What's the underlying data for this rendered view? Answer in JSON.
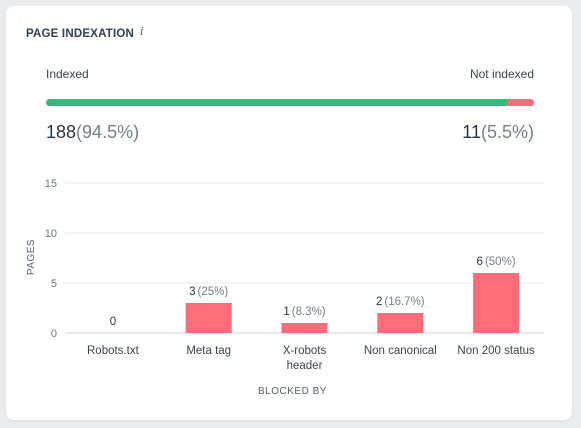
{
  "widget": {
    "title": "PAGE INDEXATION",
    "info_icon": "info-icon"
  },
  "indexation": {
    "indexed_label": "Indexed",
    "not_indexed_label": "Not indexed",
    "indexed_count": "188",
    "indexed_pct": "(94.5%)",
    "not_indexed_count": "11",
    "not_indexed_pct": "(5.5%)",
    "indexed_fraction": 0.945,
    "colors": {
      "indexed": "#3cb77b",
      "not_indexed": "#ff6d7a"
    }
  },
  "chart_data": {
    "type": "bar",
    "categories": [
      "Robots.txt",
      "Meta tag",
      "X-robots header",
      "Non canonical",
      "Non 200 status"
    ],
    "values": [
      0,
      3,
      1,
      2,
      6
    ],
    "value_labels": [
      "0",
      "3",
      "1",
      "2",
      "6"
    ],
    "pct_labels": [
      "",
      "(25%)",
      "(8.3%)",
      "(16.7%)",
      "(50%)"
    ],
    "ylabel": "PAGES",
    "xlabel": "BLOCKED BY",
    "yticks": [
      0,
      5,
      10,
      15
    ],
    "ylim": [
      0,
      15
    ],
    "grid": true,
    "bar_color": "#ff6d7a"
  }
}
